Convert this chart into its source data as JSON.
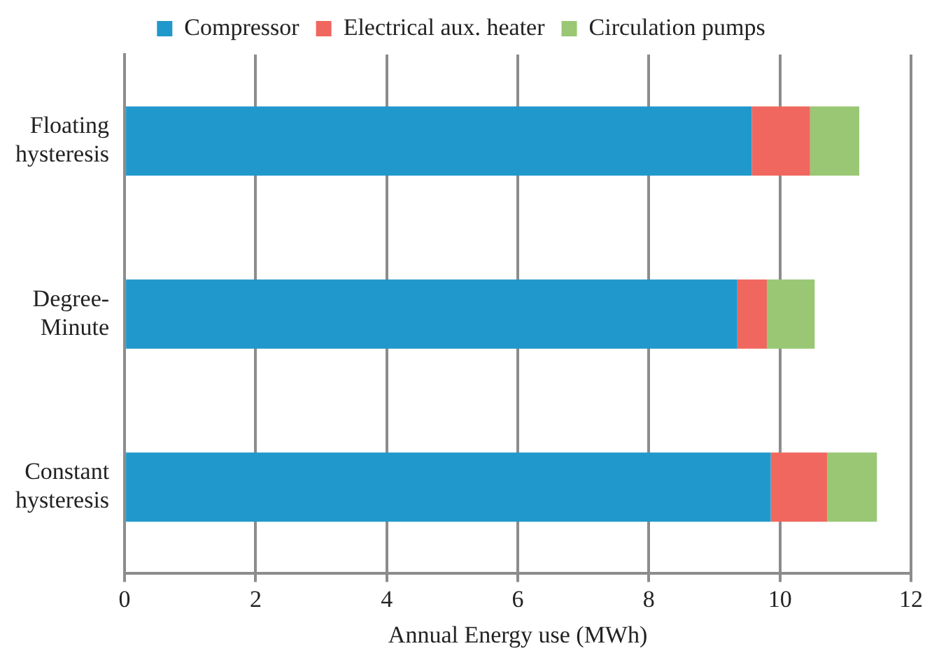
{
  "chart_data": {
    "type": "bar",
    "orientation": "horizontal",
    "stacked": true,
    "xlabel": "Annual Energy use (MWh)",
    "categories": [
      "Floating hysteresis",
      "Degree-Minute",
      "Constant hysteresis"
    ],
    "series": [
      {
        "name": "Compressor",
        "color": "#2198cb",
        "values": [
          9.57,
          9.35,
          9.86
        ]
      },
      {
        "name": "Electrical aux. heater",
        "color": "#f0675f",
        "values": [
          0.89,
          0.45,
          0.86
        ]
      },
      {
        "name": "Circulation pumps",
        "color": "#99c774",
        "values": [
          0.75,
          0.73,
          0.76
        ]
      }
    ],
    "xlim": [
      0,
      12
    ],
    "xticks": [
      0,
      2,
      4,
      6,
      8,
      10,
      12
    ],
    "grid": "x",
    "legend": "top"
  }
}
